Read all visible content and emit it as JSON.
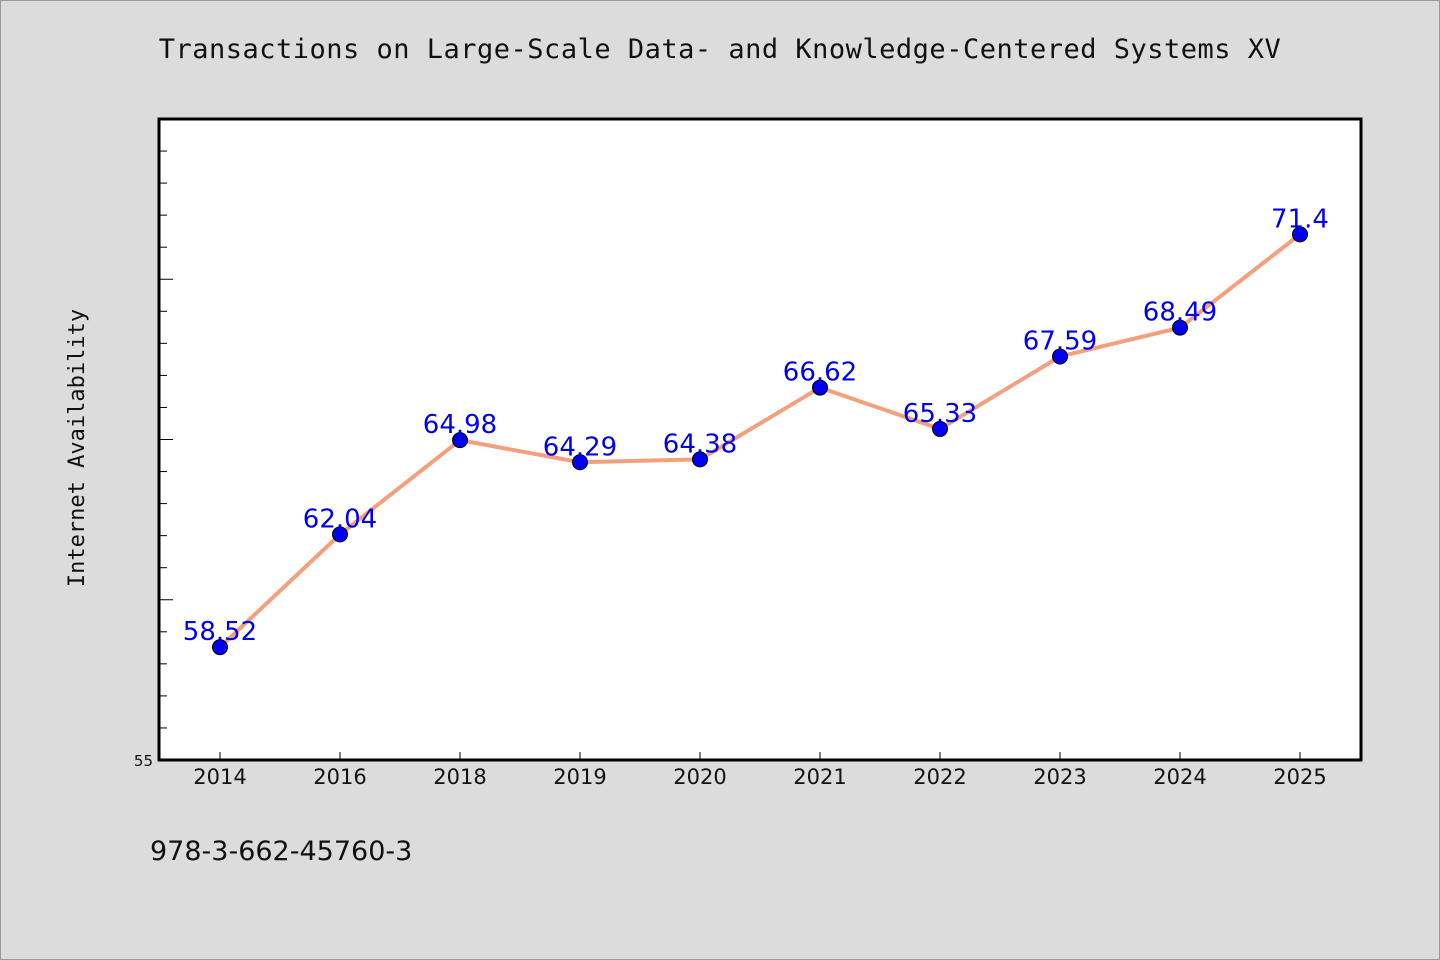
{
  "page": {
    "title": "Transactions on Large-Scale Data- and Knowledge-Centered Systems XV",
    "footer": "978-3-662-45760-3"
  },
  "colors": {
    "background": "#dcdcdc",
    "plot_background": "#ffffff",
    "line": "#f4a07e",
    "marker": "#0000ee",
    "label": "#0000ee",
    "text": "#111111"
  },
  "chart_data": {
    "type": "line",
    "title": "Transactions on Large-Scale Data- and Knowledge-Centered Systems XV",
    "xlabel": "",
    "ylabel": "Internet Availability",
    "categories": [
      "2014",
      "2016",
      "2018",
      "2019",
      "2020",
      "2021",
      "2022",
      "2023",
      "2024",
      "2025"
    ],
    "series": [
      {
        "values": [
          58.52,
          62.04,
          64.98,
          64.29,
          64.38,
          66.62,
          65.33,
          67.59,
          68.49,
          71.4
        ]
      }
    ],
    "data_labels": [
      "58.52",
      "62.04",
      "64.98",
      "64.29",
      "64.38",
      "66.62",
      "65.33",
      "67.59",
      "68.49",
      "71.4"
    ],
    "ylim": [
      55,
      75
    ],
    "yticks_labeled": [
      "55"
    ],
    "grid": false,
    "legend": "none",
    "markers": true
  }
}
